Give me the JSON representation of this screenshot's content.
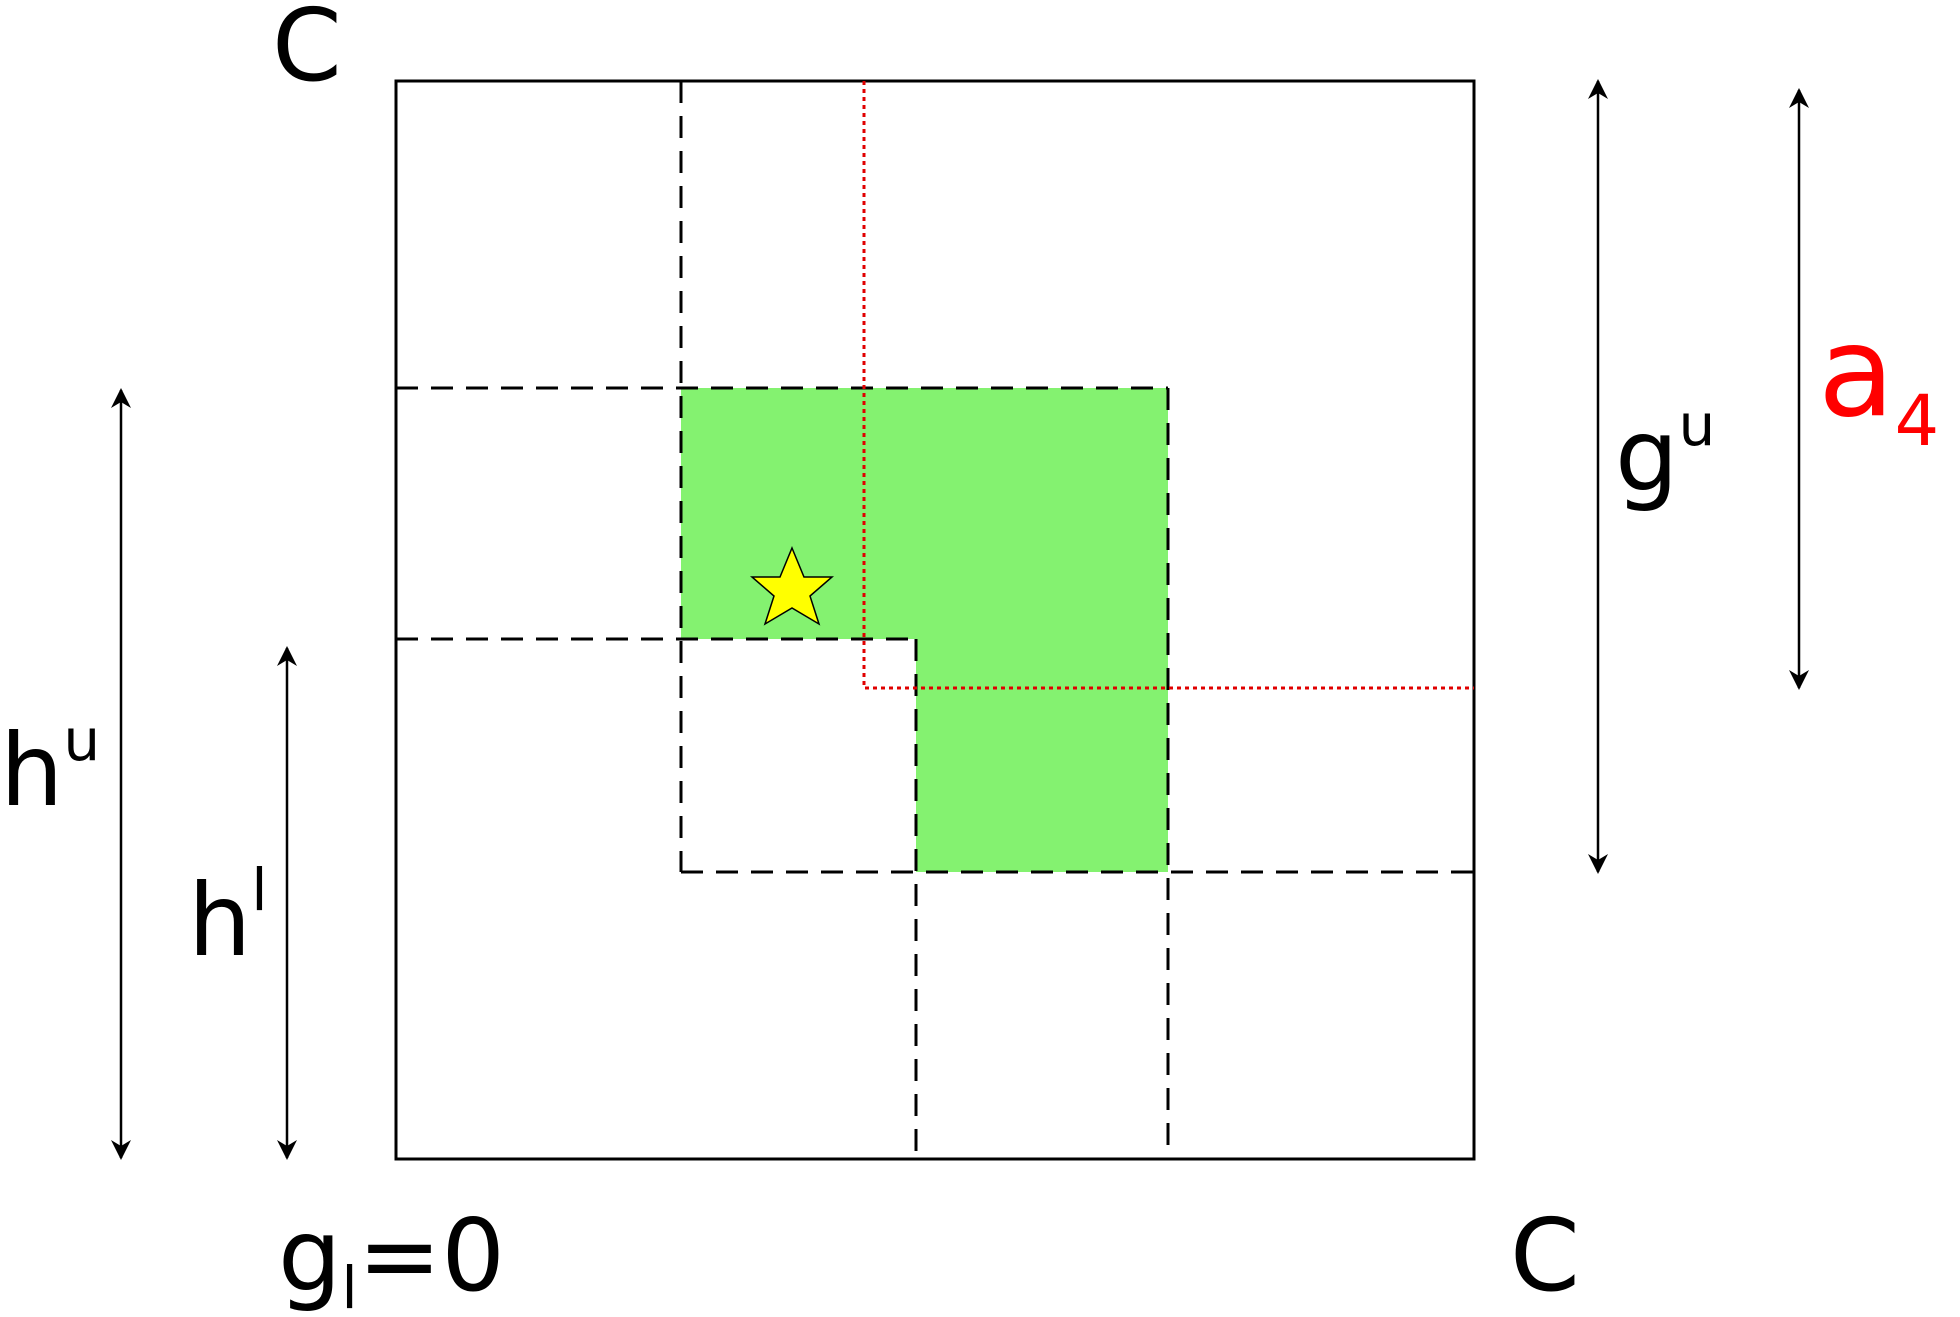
{
  "labels": {
    "corner_top": "C",
    "corner_right": "C",
    "g_lower_base": "g",
    "g_lower_sub": "l",
    "g_lower_rest": "=0",
    "h_upper_base": "h",
    "h_upper_sup": "u",
    "h_lower_base": "h",
    "h_lower_sup": "l",
    "g_upper_base": "g",
    "g_upper_sup": "u",
    "a_base": "a",
    "a_sub": "4"
  },
  "colors": {
    "region_fill": "#84f270",
    "star_fill": "#ffff00",
    "red_line": "#e00000",
    "a_label": "#ff0000",
    "ink": "#000000"
  }
}
